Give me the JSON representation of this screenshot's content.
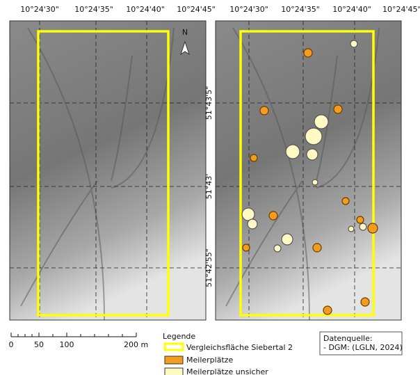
{
  "map": {
    "longitude_labels": [
      "10°24'30\"",
      "10°24'35\"",
      "10°24'40\"",
      "10°24'45\""
    ],
    "latitude_labels": [
      "51°43'5\"",
      "51°43'",
      "51°42'55\""
    ],
    "north": "N"
  },
  "scale_bar": {
    "labels": [
      "0",
      "50",
      "100",
      "200 m"
    ]
  },
  "legend": {
    "title": "Legende",
    "items": [
      "Vergleichsfläche Siebertal 2",
      "Meilerplätze",
      "Meilerplätze unsicher"
    ]
  },
  "source": {
    "title": "Datenquelle:",
    "lines": [
      "- DGM: (LGLN, 2024)"
    ]
  }
}
